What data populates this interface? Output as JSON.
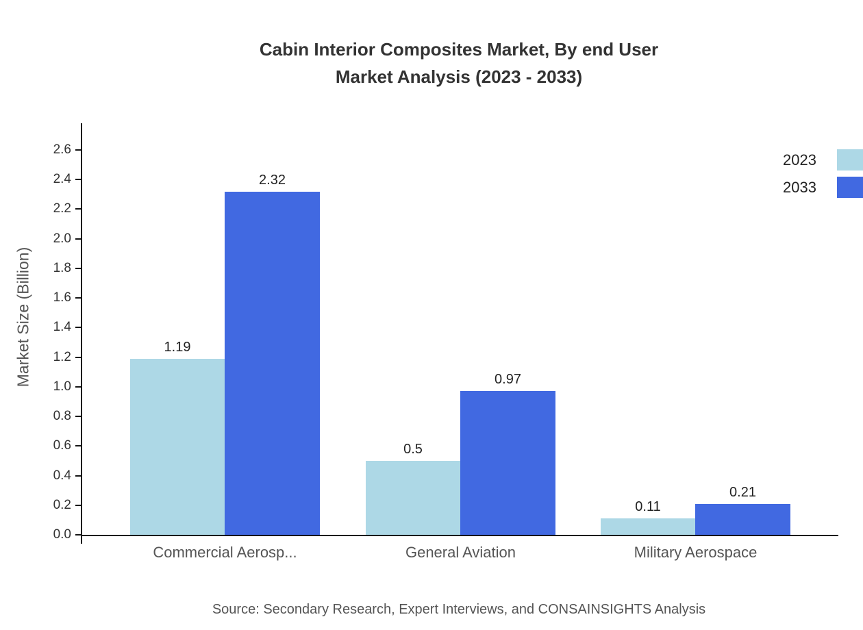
{
  "chart_data": {
    "type": "bar",
    "title": "Cabin Interior Composites Market, By end User Market Analysis (2023 - 2033)",
    "title_lines": [
      "Cabin Interior Composites Market, By end User",
      "Market Analysis (2023 - 2033)"
    ],
    "ylabel": "Market Size (Billion)",
    "xlabel": "",
    "categories": [
      "Commercial Aerosp...",
      "General Aviation",
      "Military Aerospace"
    ],
    "series": [
      {
        "name": "2023",
        "color": "#add8e6",
        "values": [
          1.19,
          0.5,
          0.11
        ]
      },
      {
        "name": "2033",
        "color": "#4169e1",
        "values": [
          2.32,
          0.97,
          0.21
        ]
      }
    ],
    "ylim": [
      0,
      2.6
    ],
    "ytick_step": 0.2,
    "yticks": [
      "0.0",
      "0.2",
      "0.4",
      "0.6",
      "0.8",
      "1.0",
      "1.2",
      "1.4",
      "1.6",
      "1.8",
      "2.0",
      "2.2",
      "2.4",
      "2.6"
    ],
    "grid": false,
    "legend_position": "top-right",
    "source": "Source: Secondary Research, Expert Interviews, and CONSAINSIGHTS Analysis"
  }
}
